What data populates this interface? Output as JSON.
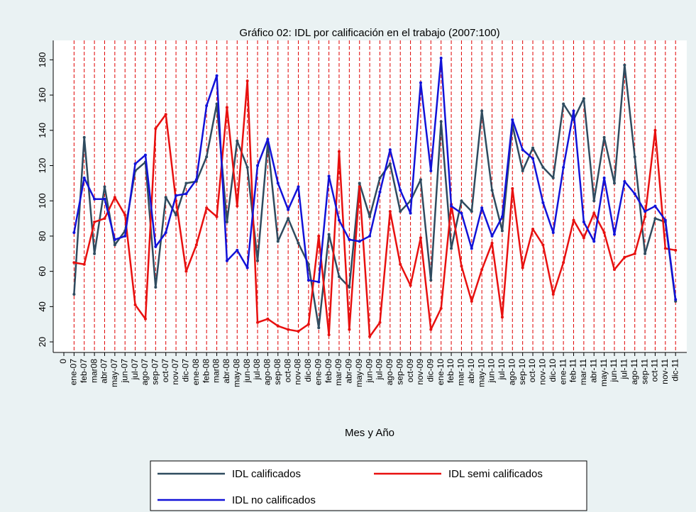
{
  "chart_data": {
    "type": "line",
    "title": "Gráfico 02: IDL por calificación en el trabajo (2007:100)",
    "xlabel": "Mes y Año",
    "categories": [
      "0",
      "ene-07",
      "feb-07",
      "mar08",
      "abr-07",
      "may-07",
      "jun-07",
      "jul-07",
      "ago-07",
      "sep-07",
      "oct-07",
      "nov-07",
      "dic-07",
      "ene-08",
      "feb-08",
      "mar08",
      "abr-08",
      "may-08",
      "jun-08",
      "jul-08",
      "ago-08",
      "sep-08",
      "oct-08",
      "nov-08",
      "dic-08",
      "ene-09",
      "feb-09",
      "mar-09",
      "abr-09",
      "may-09",
      "jun-09",
      "jul-09",
      "ago-09",
      "sep-09",
      "oct-09",
      "nov-09",
      "dic-09",
      "ene-10",
      "feb-10",
      "mar-10",
      "abr-10",
      "may-10",
      "jun-10",
      "jul-10",
      "ago-10",
      "sep-10",
      "oct-10",
      "nov-10",
      "dic-10",
      "ene-11",
      "feb-11",
      "mar-11",
      "abr-11",
      "may-11",
      "jun-11",
      "jul-11",
      "ago-11",
      "sep-11",
      "oct-11",
      "nov-11",
      "dic-11"
    ],
    "series": [
      {
        "name": "IDL calificados",
        "color": "#2f4b5f",
        "values": [
          null,
          47,
          136,
          70,
          108,
          75,
          83,
          117,
          122,
          51,
          102,
          92,
          110,
          111,
          125,
          155,
          88,
          134,
          119,
          66,
          133,
          77,
          90,
          76,
          64,
          28,
          81,
          57,
          51,
          110,
          91,
          113,
          121,
          94,
          100,
          112,
          55,
          145,
          73,
          100,
          94,
          151,
          106,
          83,
          143,
          117,
          130,
          119,
          113,
          155,
          146,
          158,
          100,
          136,
          110,
          177,
          125,
          70,
          90,
          88,
          43
        ]
      },
      {
        "name": "IDL semi calificados",
        "color": "#e8100f",
        "values": [
          null,
          65,
          64,
          88,
          90,
          102,
          92,
          41,
          33,
          141,
          149,
          100,
          60,
          75,
          96,
          91,
          153,
          97,
          168,
          31,
          33,
          29,
          27,
          26,
          30,
          80,
          24,
          128,
          27,
          108,
          23,
          31,
          94,
          64,
          52,
          79,
          27,
          39,
          98,
          63,
          43,
          61,
          76,
          34,
          107,
          62,
          84,
          75,
          47,
          65,
          89,
          79,
          93,
          82,
          61,
          68,
          70,
          91,
          140,
          73,
          72
        ]
      },
      {
        "name": "IDL no calificados",
        "color": "#1212d8",
        "values": [
          null,
          82,
          113,
          101,
          101,
          78,
          80,
          121,
          126,
          74,
          82,
          103,
          104,
          112,
          154,
          171,
          66,
          72,
          62,
          120,
          135,
          110,
          95,
          108,
          55,
          54,
          114,
          89,
          78,
          77,
          80,
          105,
          129,
          106,
          93,
          167,
          117,
          181,
          97,
          93,
          73,
          96,
          80,
          91,
          146,
          129,
          124,
          99,
          82,
          119,
          151,
          88,
          77,
          113,
          81,
          111,
          104,
          94,
          97,
          89,
          44
        ]
      }
    ],
    "ylim": [
      14,
      191
    ],
    "yticks": [
      20,
      40,
      60,
      80,
      100,
      120,
      140,
      160,
      180
    ],
    "xgrid": true,
    "xgrid_color": "#e00000"
  }
}
